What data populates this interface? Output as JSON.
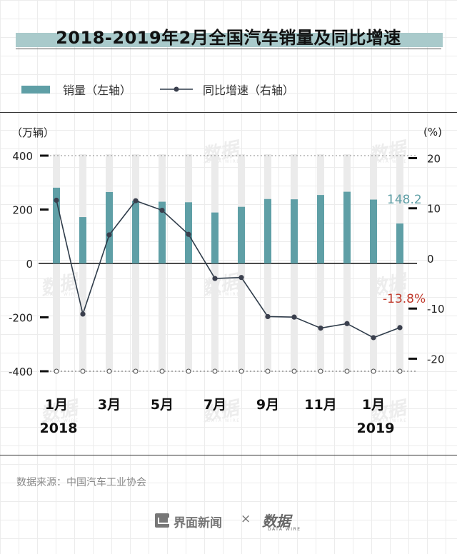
{
  "title": "2018-2019年2月全国汽车销量及同比增速",
  "legend": {
    "bar_label": "销量（左轴）",
    "line_label": "同比增速（右轴）"
  },
  "units": {
    "left": "（万辆）",
    "right": "(%)"
  },
  "source": "数据来源：中国汽车工业协会",
  "footer": {
    "brand": "界面新闻",
    "times": "×",
    "partner": "数据",
    "partner_sub": "DATA WIRE"
  },
  "watermark": {
    "text": "数据",
    "sub": "DATA WIRE"
  },
  "colors": {
    "bar": "#5f9fa6",
    "line": "#2f3c4a",
    "last_bar_label": "#5f9fa6",
    "last_line_label": "#c0392b",
    "shadow": "#ebebeb"
  },
  "chart_data": {
    "type": "bar",
    "categories": [
      "2018-01",
      "2018-02",
      "2018-03",
      "2018-04",
      "2018-05",
      "2018-06",
      "2018-07",
      "2018-08",
      "2018-09",
      "2018-10",
      "2018-11",
      "2018-12",
      "2019-01",
      "2019-02"
    ],
    "x_tick_labels": [
      {
        "index": 0,
        "label": "1月",
        "year": "2018"
      },
      {
        "index": 2,
        "label": "3月",
        "year": ""
      },
      {
        "index": 4,
        "label": "5月",
        "year": ""
      },
      {
        "index": 6,
        "label": "7月",
        "year": ""
      },
      {
        "index": 8,
        "label": "9月",
        "year": ""
      },
      {
        "index": 10,
        "label": "11月",
        "year": ""
      },
      {
        "index": 12,
        "label": "1月",
        "year": "2019"
      }
    ],
    "series": [
      {
        "name": "销量（左轴）",
        "type": "bar",
        "axis": "left",
        "values": [
          281,
          172,
          265,
          232,
          229,
          227,
          189,
          210,
          239,
          238,
          254,
          266,
          237,
          148.2
        ]
      },
      {
        "name": "同比增速（右轴）",
        "type": "line",
        "axis": "right",
        "values": [
          11.6,
          -11.1,
          4.7,
          11.5,
          9.6,
          4.8,
          -4.0,
          -3.8,
          -11.6,
          -11.7,
          -13.9,
          -13.0,
          -15.8,
          -13.8
        ]
      }
    ],
    "left_axis": {
      "ticks": [
        400,
        200,
        0,
        -200,
        -400
      ],
      "ylim": [
        -400,
        400
      ]
    },
    "right_axis": {
      "ticks": [
        20,
        10,
        0,
        -10,
        -20
      ],
      "ylim": [
        -22.5,
        20.5
      ]
    },
    "data_labels": {
      "last_bar": "148.2",
      "last_line": "-13.8%"
    },
    "legend_position": "top-left",
    "grid": true
  }
}
